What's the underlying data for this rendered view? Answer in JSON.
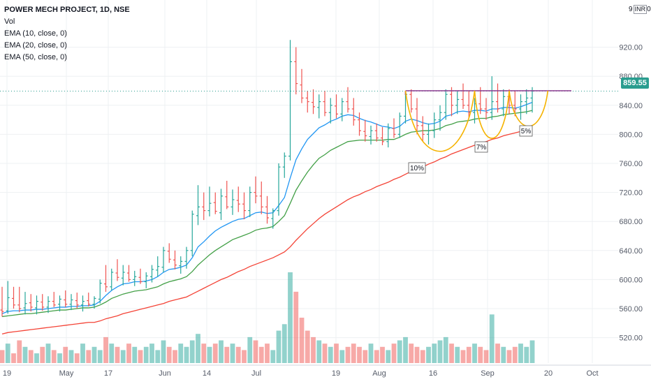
{
  "legend": {
    "title": "POWER MECH PROJECT, 1D, NSE",
    "vol": "Vol",
    "ema10": "EMA (10, close, 0)",
    "ema20": "EMA (20, close, 0)",
    "ema50": "EMA (50, close, 0)"
  },
  "currency": {
    "digit_top": "9",
    "code": "INR",
    "digit_right": "0"
  },
  "last_price": "859.55",
  "colors": {
    "up": "#26a69a",
    "down": "#ef5350",
    "ema10": "#2196f3",
    "ema20": "#43a047",
    "ema50": "#f44336",
    "pattern": "#f5b300",
    "resistance": "#8b3a8f",
    "price_label": "#2a9d8f"
  },
  "chart_data": {
    "type": "ohlc",
    "symbol": "POWER MECH PROJECT",
    "interval": "1D",
    "exchange": "NSE",
    "ylim": [
      485,
      985
    ],
    "y_ticks": [
      520,
      560,
      600,
      640,
      680,
      720,
      760,
      800,
      840,
      880,
      920
    ],
    "y_tick_labels": [
      "520.00",
      "560.00",
      "600.00",
      "640.00",
      "680.00",
      "720.00",
      "760.00",
      "800.00",
      "840.00",
      "880.00",
      "920.00"
    ],
    "x_ticks": [
      "19",
      "May",
      "17",
      "Jun",
      "14",
      "Jul",
      "19",
      "Aug",
      "16",
      "Sep",
      "20",
      "Oct"
    ],
    "last_price": 859.55,
    "resistance": 860,
    "annotations": [
      "10%",
      "7%",
      "5%"
    ],
    "bars": [
      [
        558,
        590,
        549,
        556
      ],
      [
        557,
        598,
        553,
        575
      ],
      [
        574,
        590,
        560,
        565
      ],
      [
        565,
        590,
        555,
        560
      ],
      [
        561,
        583,
        552,
        567
      ],
      [
        568,
        580,
        556,
        562
      ],
      [
        561,
        578,
        552,
        570
      ],
      [
        569,
        580,
        557,
        562
      ],
      [
        562,
        577,
        554,
        570
      ],
      [
        570,
        583,
        562,
        565
      ],
      [
        566,
        578,
        556,
        573
      ],
      [
        572,
        585,
        562,
        566
      ],
      [
        566,
        580,
        558,
        572
      ],
      [
        571,
        582,
        560,
        565
      ],
      [
        565,
        578,
        556,
        570
      ],
      [
        571,
        582,
        563,
        566
      ],
      [
        566,
        577,
        560,
        574
      ],
      [
        573,
        600,
        567,
        595
      ],
      [
        594,
        620,
        583,
        590
      ],
      [
        590,
        615,
        585,
        610
      ],
      [
        609,
        628,
        598,
        603
      ],
      [
        602,
        620,
        592,
        610
      ],
      [
        609,
        620,
        597,
        600
      ],
      [
        600,
        612,
        591,
        604
      ],
      [
        603,
        615,
        594,
        597
      ],
      [
        597,
        610,
        588,
        605
      ],
      [
        604,
        620,
        596,
        614
      ],
      [
        613,
        632,
        604,
        618
      ],
      [
        617,
        645,
        610,
        640
      ],
      [
        639,
        650,
        623,
        628
      ],
      [
        627,
        640,
        614,
        620
      ],
      [
        619,
        632,
        608,
        625
      ],
      [
        625,
        645,
        615,
        640
      ],
      [
        640,
        695,
        632,
        690
      ],
      [
        688,
        730,
        675,
        700
      ],
      [
        700,
        720,
        682,
        695
      ],
      [
        695,
        728,
        687,
        705
      ],
      [
        706,
        720,
        690,
        694
      ],
      [
        692,
        725,
        682,
        715
      ],
      [
        714,
        736,
        697,
        700
      ],
      [
        700,
        724,
        689,
        710
      ],
      [
        709,
        728,
        693,
        704
      ],
      [
        704,
        720,
        683,
        695
      ],
      [
        695,
        728,
        686,
        720
      ],
      [
        720,
        742,
        705,
        715
      ],
      [
        715,
        735,
        690,
        700
      ],
      [
        700,
        715,
        677,
        685
      ],
      [
        684,
        698,
        670,
        695
      ],
      [
        695,
        760,
        688,
        755
      ],
      [
        755,
        775,
        740,
        770
      ],
      [
        770,
        930,
        764,
        900
      ],
      [
        900,
        920,
        855,
        870
      ],
      [
        868,
        890,
        843,
        850
      ],
      [
        850,
        860,
        830,
        845
      ],
      [
        844,
        862,
        828,
        838
      ],
      [
        837,
        855,
        822,
        845
      ],
      [
        845,
        860,
        825,
        830
      ],
      [
        830,
        850,
        815,
        840
      ],
      [
        839,
        855,
        822,
        828
      ],
      [
        828,
        850,
        818,
        845
      ],
      [
        845,
        865,
        830,
        835
      ],
      [
        835,
        850,
        812,
        820
      ],
      [
        820,
        830,
        798,
        805
      ],
      [
        804,
        820,
        790,
        798
      ],
      [
        797,
        812,
        786,
        805
      ],
      [
        805,
        815,
        790,
        795
      ],
      [
        795,
        810,
        785,
        790
      ],
      [
        790,
        815,
        782,
        808
      ],
      [
        808,
        822,
        795,
        800
      ],
      [
        800,
        830,
        795,
        825
      ],
      [
        825,
        860,
        815,
        855
      ],
      [
        855,
        862,
        830,
        835
      ],
      [
        835,
        850,
        800,
        812
      ],
      [
        812,
        825,
        790,
        800
      ],
      [
        800,
        815,
        786,
        805
      ],
      [
        805,
        830,
        795,
        820
      ],
      [
        820,
        840,
        805,
        830
      ],
      [
        830,
        862,
        820,
        855
      ],
      [
        855,
        865,
        825,
        840
      ],
      [
        840,
        860,
        828,
        848
      ],
      [
        848,
        870,
        835,
        840
      ],
      [
        840,
        860,
        822,
        830
      ],
      [
        830,
        850,
        815,
        842
      ],
      [
        842,
        865,
        828,
        835
      ],
      [
        835,
        850,
        820,
        830
      ],
      [
        830,
        880,
        820,
        845
      ],
      [
        845,
        870,
        830,
        835
      ],
      [
        835,
        862,
        825,
        852
      ],
      [
        852,
        862,
        828,
        840
      ],
      [
        840,
        860,
        825,
        835
      ],
      [
        835,
        855,
        820,
        845
      ],
      [
        845,
        862,
        828,
        850
      ],
      [
        850,
        865,
        830,
        859.55
      ]
    ],
    "volume": [
      4,
      6,
      3,
      7,
      5,
      4,
      3,
      5,
      6,
      4,
      3,
      5,
      4,
      3,
      6,
      4,
      5,
      4,
      8,
      6,
      5,
      4,
      6,
      5,
      4,
      5,
      6,
      4,
      7,
      5,
      4,
      6,
      5,
      7,
      9,
      6,
      5,
      6,
      7,
      5,
      6,
      5,
      4,
      8,
      7,
      5,
      6,
      4,
      10,
      12,
      28,
      22,
      14,
      10,
      8,
      7,
      6,
      5,
      6,
      4,
      5,
      6,
      5,
      4,
      6,
      4,
      5,
      4,
      6,
      7,
      8,
      6,
      5,
      4,
      5,
      6,
      7,
      8,
      6,
      5,
      4,
      5,
      6,
      5,
      4,
      15,
      6,
      5,
      4,
      5,
      6,
      5,
      7
    ],
    "ema10": [
      553,
      556,
      557,
      557,
      558,
      558,
      559,
      559,
      560,
      561,
      562,
      562,
      563,
      563,
      564,
      564,
      565,
      570,
      578,
      585,
      590,
      594,
      595,
      597,
      597,
      598,
      600,
      604,
      610,
      614,
      615,
      617,
      620,
      630,
      645,
      652,
      660,
      667,
      672,
      676,
      680,
      683,
      684,
      688,
      692,
      693,
      691,
      692,
      702,
      713,
      740,
      765,
      780,
      793,
      801,
      809,
      813,
      818,
      821,
      825,
      827,
      826,
      822,
      819,
      817,
      814,
      811,
      810,
      808,
      811,
      818,
      821,
      819,
      816,
      814,
      815,
      818,
      825,
      827,
      831,
      832,
      831,
      833,
      833,
      832,
      835,
      835,
      837,
      837,
      836,
      838,
      841,
      844
    ],
    "ema20": [
      549,
      550,
      551,
      552,
      553,
      553,
      554,
      555,
      556,
      557,
      558,
      558,
      559,
      560,
      561,
      561,
      562,
      565,
      569,
      574,
      577,
      580,
      582,
      584,
      585,
      586,
      588,
      590,
      594,
      597,
      599,
      601,
      604,
      611,
      620,
      627,
      634,
      640,
      645,
      650,
      655,
      658,
      661,
      664,
      668,
      670,
      671,
      673,
      680,
      688,
      705,
      723,
      736,
      748,
      758,
      767,
      772,
      778,
      782,
      786,
      790,
      791,
      792,
      792,
      792,
      792,
      792,
      793,
      793,
      796,
      800,
      803,
      804,
      805,
      805,
      806,
      808,
      812,
      814,
      817,
      818,
      819,
      821,
      822,
      822,
      824,
      825,
      827,
      828,
      829,
      830,
      831,
      833
    ],
    "ema50": [
      525,
      527,
      528,
      529,
      530,
      531,
      532,
      533,
      534,
      535,
      536,
      537,
      538,
      539,
      540,
      541,
      541,
      543,
      546,
      548,
      550,
      553,
      555,
      557,
      559,
      561,
      563,
      565,
      567,
      570,
      572,
      574,
      576,
      580,
      584,
      588,
      592,
      596,
      600,
      603,
      607,
      611,
      614,
      618,
      621,
      624,
      627,
      630,
      634,
      638,
      645,
      654,
      662,
      670,
      677,
      684,
      690,
      695,
      700,
      705,
      710,
      714,
      717,
      721,
      724,
      728,
      731,
      734,
      738,
      741,
      745,
      749,
      752,
      755,
      759,
      762,
      766,
      769,
      773,
      776,
      779,
      782,
      785,
      788,
      790,
      793,
      795,
      798,
      800,
      802,
      804,
      806,
      808
    ]
  }
}
